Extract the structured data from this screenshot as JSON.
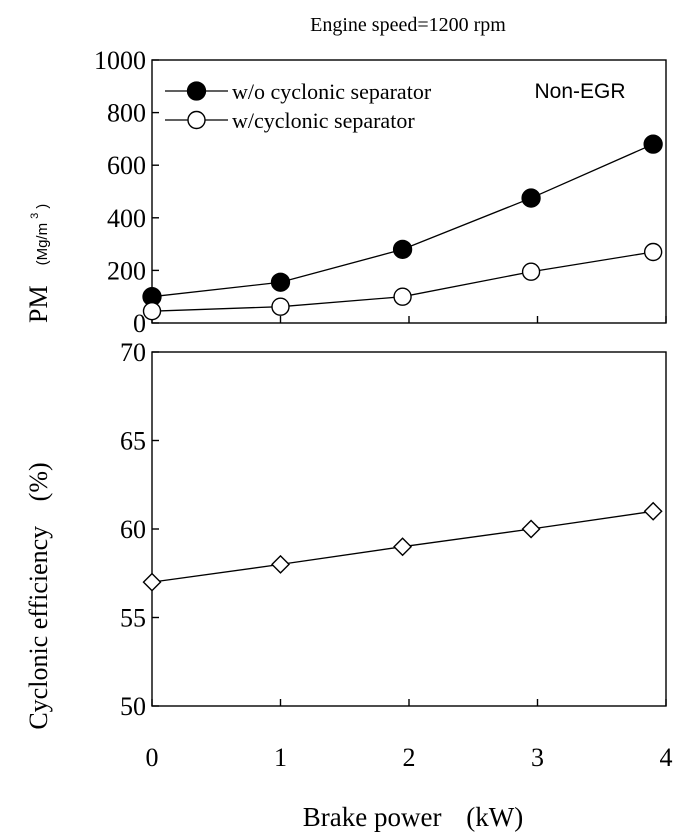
{
  "chart_data": [
    {
      "type": "line",
      "title": "Engine speed=1200 rpm",
      "annotation": "Non-EGR",
      "ylabel": "PM",
      "ylabel_unit": "(Mg/m",
      "ylabel_unit_sup": "3",
      "ylabel_unit_close": ")",
      "ylim": [
        0,
        1000
      ],
      "yticks": [
        "0",
        "200",
        "400",
        "600",
        "800",
        "1000"
      ],
      "xlim": [
        0,
        4
      ],
      "legend_position": "top-left",
      "series": [
        {
          "name": "w/o cyclonic separator",
          "marker": "filled-circle",
          "x": [
            0,
            1,
            1.95,
            2.95,
            3.9
          ],
          "values": [
            100,
            155,
            280,
            475,
            680
          ]
        },
        {
          "name": "w/cyclonic separator",
          "marker": "open-circle",
          "x": [
            0,
            1,
            1.95,
            2.95,
            3.9
          ],
          "values": [
            45,
            62,
            100,
            195,
            270
          ]
        }
      ]
    },
    {
      "type": "line",
      "ylabel": "Cyclonic efficiency",
      "ylabel_unit": "(%)",
      "ylim": [
        50,
        70
      ],
      "yticks": [
        "50",
        "55",
        "60",
        "65",
        "70"
      ],
      "xlabel": "Brake power",
      "xlabel_unit": "(kW)",
      "xlim": [
        0,
        4
      ],
      "xticks": [
        "0",
        "1",
        "2",
        "3",
        "4"
      ],
      "series": [
        {
          "marker": "open-diamond",
          "x": [
            0,
            1,
            1.95,
            2.95,
            3.9
          ],
          "values": [
            57,
            58,
            59,
            60,
            61
          ]
        }
      ]
    }
  ]
}
